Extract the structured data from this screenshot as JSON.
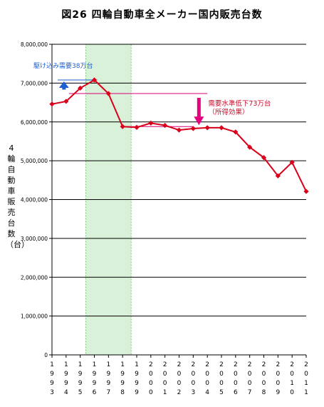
{
  "chart_data": {
    "type": "line",
    "title": "図26 四輪自動車全メーカー国内販売台数",
    "ylabel": "4輪自動車販売台数（台）",
    "xlabel": "",
    "ylim": [
      0,
      8000000
    ],
    "yticks": [
      0,
      1000000,
      2000000,
      3000000,
      4000000,
      5000000,
      6000000,
      7000000,
      8000000
    ],
    "ytick_labels": [
      "0",
      "1,000,000",
      "2,000,000",
      "3,000,000",
      "4,000,000",
      "5,000,000",
      "6,000,000",
      "7,000,000",
      "8,000,000"
    ],
    "categories": [
      "1993",
      "1994",
      "1995",
      "1996",
      "1997",
      "1998",
      "1999",
      "2000",
      "2001",
      "2002",
      "2003",
      "2004",
      "2005",
      "2006",
      "2007",
      "2008",
      "2009",
      "2010",
      "2011"
    ],
    "series": [
      {
        "values": [
          6460000,
          6530000,
          6870000,
          7080000,
          6730000,
          5880000,
          5860000,
          5970000,
          5910000,
          5790000,
          5830000,
          5850000,
          5850000,
          5740000,
          5350000,
          5080000,
          4610000,
          4960000,
          4210000
        ],
        "color": "#d9001b"
      }
    ],
    "highlight_range": [
      "1996",
      "1998"
    ],
    "grid": true,
    "annotations": [
      {
        "text": "駆け込み需要38万台",
        "color": "#1f5fd1"
      },
      {
        "text": "需要水準低下73万台",
        "color": "#c8102e"
      },
      {
        "text": "（所得効果）",
        "color": "#c8102e"
      }
    ]
  }
}
